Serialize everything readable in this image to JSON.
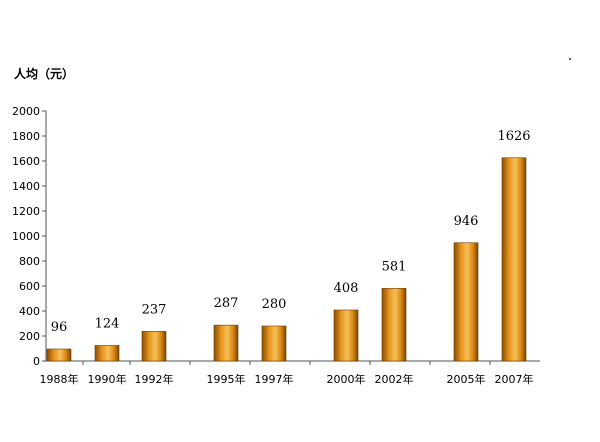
{
  "chart_data": {
    "type": "bar",
    "ylabel": "人均（元）",
    "xlabel": "",
    "title": "",
    "ylim": [
      0,
      2000
    ],
    "yticks": [
      0,
      200,
      400,
      600,
      800,
      1000,
      1200,
      1400,
      1600,
      1800,
      2000
    ],
    "categories": [
      "1988年",
      "1990年",
      "1992年",
      "1995年",
      "1997年",
      "2000年",
      "2002年",
      "2005年",
      "2007年"
    ],
    "values": [
      96,
      124,
      237,
      287,
      280,
      408,
      581,
      946,
      1626
    ],
    "grid": false,
    "legend": "none",
    "bar_color": "#e8961f"
  }
}
